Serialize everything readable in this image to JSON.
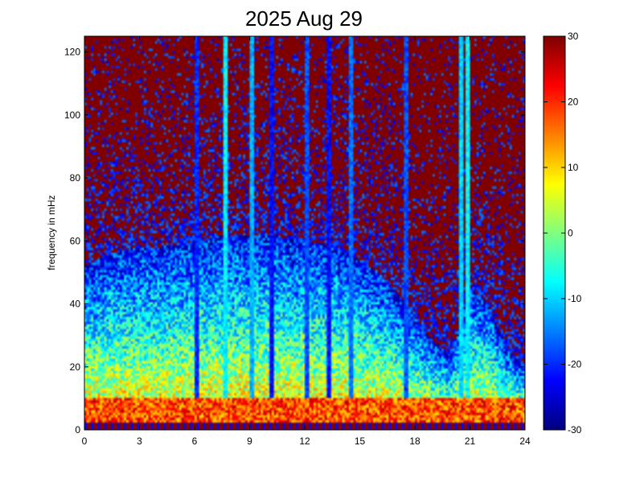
{
  "chart_data": {
    "type": "heatmap",
    "title": "2025 Aug 29",
    "xlabel": "",
    "ylabel": "frequency in mHz",
    "xlim": [
      0,
      24
    ],
    "ylim": [
      0,
      125
    ],
    "x_ticks": [
      0,
      3,
      6,
      9,
      12,
      15,
      18,
      21,
      24
    ],
    "x_tick_labels": [
      "0",
      "3",
      "6",
      "9",
      "12",
      "15",
      "18",
      "21",
      "24"
    ],
    "y_ticks": [
      0,
      20,
      40,
      60,
      80,
      100,
      120
    ],
    "y_tick_labels": [
      "0",
      "20",
      "40",
      "60",
      "80",
      "100",
      "120"
    ],
    "colorbar": {
      "range": [
        -30,
        30
      ],
      "ticks": [
        -30,
        -20,
        -10,
        0,
        10,
        20,
        30
      ],
      "tick_labels": [
        "-30",
        "-20",
        "-10",
        "0",
        "10",
        "20",
        "30"
      ],
      "colormap": "jet"
    },
    "grid": false,
    "background_level": 30,
    "noise_floor_boundary": {
      "x": [
        0,
        1,
        2,
        3,
        4,
        5,
        6,
        7,
        8,
        9,
        10,
        11,
        12,
        13,
        14,
        15,
        16,
        17,
        18,
        19,
        20,
        21,
        22,
        23,
        24
      ],
      "freq": [
        52,
        55,
        57,
        58,
        58,
        59,
        60,
        61,
        62,
        62,
        62,
        61,
        60,
        59,
        57,
        54,
        50,
        44,
        36,
        28,
        24,
        45,
        40,
        26,
        20
      ]
    },
    "dc_band": {
      "freq_range": [
        0,
        2
      ],
      "level": 30
    },
    "low_freq_band": {
      "freq_range": [
        2,
        10
      ],
      "level": 18
    },
    "vertical_streaks": [
      {
        "x": 6.1,
        "level": -20
      },
      {
        "x": 7.7,
        "level": -8
      },
      {
        "x": 9.1,
        "level": -12
      },
      {
        "x": 10.2,
        "level": -22
      },
      {
        "x": 12.1,
        "level": -18
      },
      {
        "x": 13.3,
        "level": -22
      },
      {
        "x": 14.5,
        "level": -16
      },
      {
        "x": 17.5,
        "level": -18
      },
      {
        "x": 20.5,
        "level": -10
      },
      {
        "x": 20.9,
        "level": -8
      }
    ]
  }
}
